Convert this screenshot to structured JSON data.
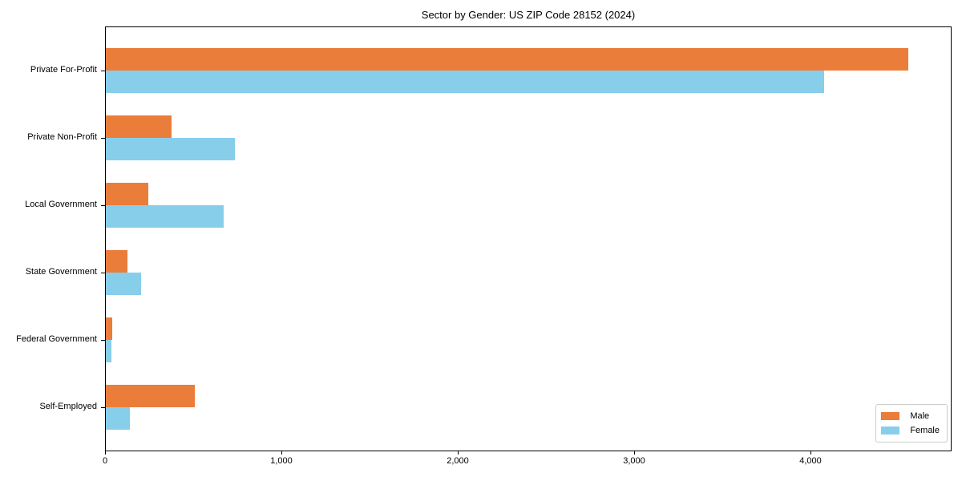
{
  "chart_data": {
    "type": "bar",
    "orientation": "horizontal",
    "title": "Sector by Gender: US ZIP Code 28152 (2024)",
    "categories": [
      "Private For-Profit",
      "Private Non-Profit",
      "Local Government",
      "State Government",
      "Federal Government",
      "Self-Employed"
    ],
    "series": [
      {
        "name": "Male",
        "color": "#eb7d3b",
        "values": [
          4560,
          375,
          240,
          122,
          36,
          505
        ]
      },
      {
        "name": "Female",
        "color": "#87ceeb",
        "values": [
          4080,
          735,
          670,
          200,
          34,
          136
        ]
      }
    ],
    "xlabel": "",
    "ylabel": "",
    "xlim": [
      0,
      4800
    ],
    "xticks": [
      0,
      1000,
      2000,
      3000,
      4000
    ],
    "xtick_labels": [
      "0",
      "1,000",
      "2,000",
      "3,000",
      "4,000"
    ],
    "grid": false,
    "legend": {
      "position": "lower-right",
      "entries": [
        "Male",
        "Female"
      ],
      "border_color": "#cccccc"
    }
  }
}
